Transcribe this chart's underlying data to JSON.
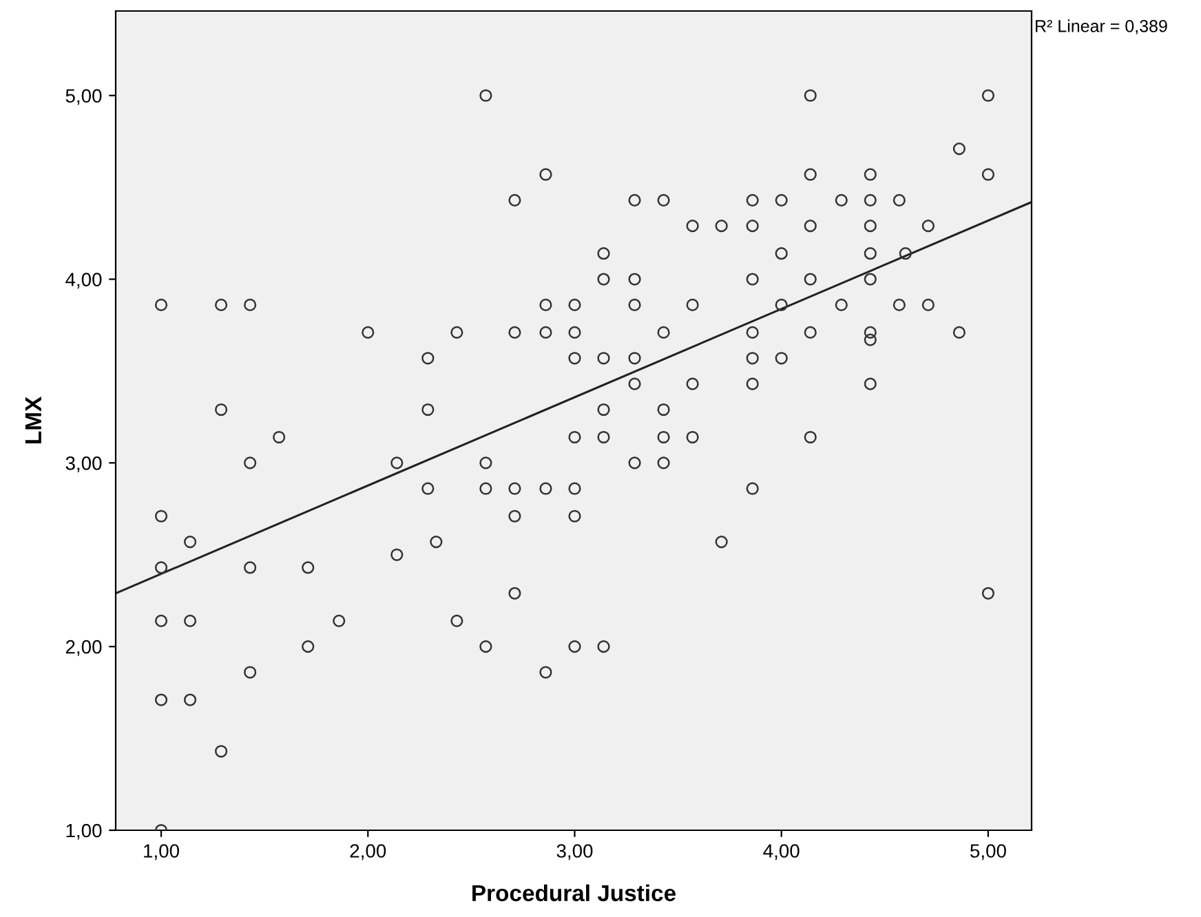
{
  "chart_data": {
    "type": "scatter",
    "xlabel": "Procedural Justice",
    "ylabel": "LMX",
    "annotations": [
      "R² Linear = 0,389"
    ],
    "xlim": [
      0.78,
      5.21
    ],
    "ylim": [
      1.0,
      5.46
    ],
    "xticks": [
      {
        "value": 1,
        "label": "1,00"
      },
      {
        "value": 2,
        "label": "2,00"
      },
      {
        "value": 3,
        "label": "3,00"
      },
      {
        "value": 4,
        "label": "4,00"
      },
      {
        "value": 5,
        "label": "5,00"
      }
    ],
    "yticks": [
      {
        "value": 1,
        "label": "1,00"
      },
      {
        "value": 2,
        "label": "2,00"
      },
      {
        "value": 3,
        "label": "3,00"
      },
      {
        "value": 4,
        "label": "4,00"
      },
      {
        "value": 5,
        "label": "5,00"
      }
    ],
    "grid": false,
    "marker": "circle",
    "series": [
      {
        "color": "#333333",
        "x": [
          1.0,
          1.0,
          1.0,
          1.0,
          1.0,
          1.0,
          1.14,
          1.14,
          1.14,
          1.29,
          1.29,
          1.29,
          1.43,
          1.43,
          1.43,
          1.43,
          1.57,
          1.71,
          1.71,
          1.86,
          2.0,
          2.14,
          2.14,
          2.29,
          2.29,
          2.29,
          2.33,
          2.43,
          2.43,
          2.57,
          2.57,
          2.57,
          2.57,
          2.71,
          2.71,
          2.71,
          2.71,
          2.71,
          2.86,
          2.86,
          2.86,
          2.86,
          2.86,
          3.0,
          3.0,
          3.0,
          3.0,
          3.0,
          3.0,
          3.0,
          3.14,
          3.14,
          3.14,
          3.14,
          3.14,
          3.14,
          3.29,
          3.29,
          3.29,
          3.29,
          3.29,
          3.29,
          3.43,
          3.43,
          3.43,
          3.43,
          3.43,
          3.57,
          3.57,
          3.57,
          3.57,
          3.71,
          3.71,
          3.86,
          3.86,
          3.86,
          3.86,
          3.86,
          3.86,
          3.86,
          4.0,
          4.0,
          4.0,
          4.0,
          4.14,
          4.14,
          4.14,
          4.14,
          4.14,
          4.14,
          4.29,
          4.29,
          4.43,
          4.43,
          4.43,
          4.43,
          4.43,
          4.43,
          4.43,
          4.43,
          4.57,
          4.57,
          4.6,
          4.71,
          4.71,
          4.86,
          4.86,
          5.0,
          5.0,
          5.0
        ],
        "values": [
          3.86,
          2.71,
          2.43,
          2.14,
          1.71,
          1.0,
          2.57,
          2.14,
          1.71,
          3.86,
          3.29,
          1.43,
          3.86,
          3.0,
          2.43,
          1.86,
          3.14,
          2.43,
          2.0,
          2.14,
          3.71,
          3.0,
          2.5,
          3.57,
          3.29,
          2.86,
          2.57,
          3.71,
          2.14,
          5.0,
          3.0,
          2.86,
          2.0,
          4.43,
          3.71,
          2.86,
          2.71,
          2.29,
          4.57,
          3.86,
          3.71,
          2.86,
          1.86,
          3.86,
          3.71,
          3.57,
          3.14,
          2.86,
          2.71,
          2.0,
          4.14,
          4.0,
          3.57,
          3.29,
          3.14,
          2.0,
          4.43,
          4.0,
          3.86,
          3.57,
          3.43,
          3.0,
          4.43,
          3.71,
          3.29,
          3.14,
          3.0,
          4.29,
          3.86,
          3.43,
          3.14,
          4.29,
          2.57,
          4.43,
          4.29,
          4.0,
          3.71,
          3.57,
          3.43,
          2.86,
          4.43,
          4.14,
          3.86,
          3.57,
          5.0,
          4.57,
          4.29,
          4.0,
          3.71,
          3.14,
          4.43,
          3.86,
          4.57,
          4.43,
          4.29,
          4.14,
          4.0,
          3.71,
          3.67,
          3.43,
          4.43,
          3.86,
          4.14,
          4.29,
          3.86,
          4.71,
          3.71,
          5.0,
          4.57,
          2.29
        ]
      },
      {
        "type": "line",
        "color": "#222222",
        "marker": "none",
        "x": [
          0.78,
          5.21
        ],
        "values": [
          2.29,
          4.42
        ]
      }
    ]
  }
}
